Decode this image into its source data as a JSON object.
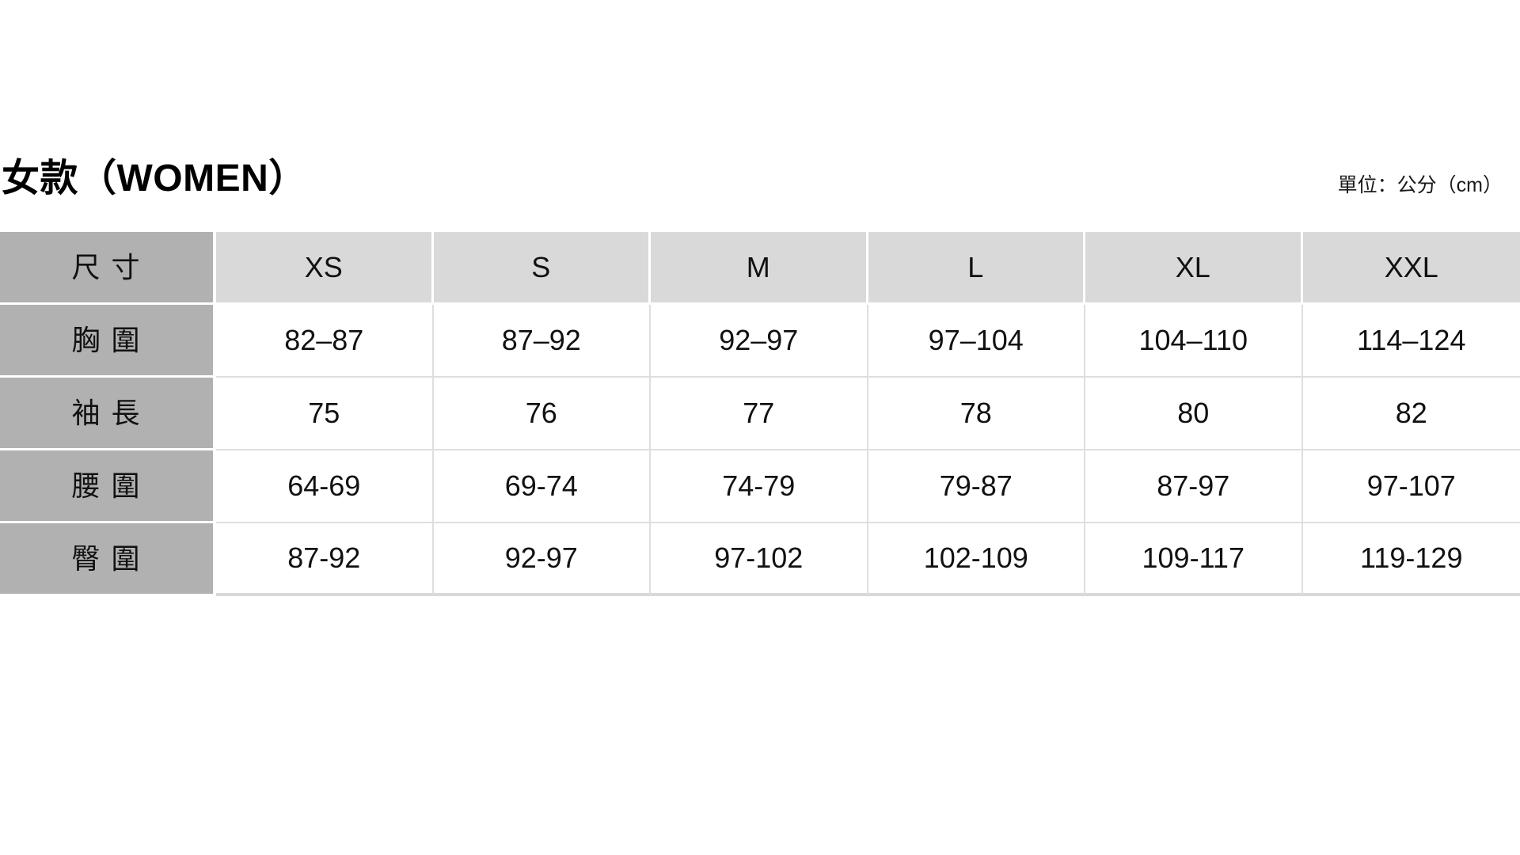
{
  "page": {
    "title": "女款（WOMEN）",
    "unit_note": "單位：公分（cm）"
  },
  "table": {
    "header": {
      "label": "尺 寸",
      "sizes": [
        "XS",
        "S",
        "M",
        "L",
        "XL",
        "XXL"
      ]
    },
    "rows": [
      {
        "label": "胸 圍",
        "values": [
          "82–87",
          "87–92",
          "92–97",
          "97–104",
          "104–110",
          "114–124"
        ]
      },
      {
        "label": "袖 長",
        "values": [
          "75",
          "76",
          "77",
          "78",
          "80",
          "82"
        ]
      },
      {
        "label": "腰 圍",
        "values": [
          "64-69",
          "69-74",
          "74-79",
          "79-87",
          "87-97",
          "97-107"
        ]
      },
      {
        "label": "臀 圍",
        "values": [
          "87-92",
          "92-97",
          "97-102",
          "102-109",
          "109-117",
          "119-129"
        ]
      }
    ]
  },
  "colors": {
    "label_bg": "#b1b1b1",
    "header_bg": "#d9d9d9",
    "grid_line": "#dedede",
    "bottom_border": "#d9d9d9",
    "text": "#111111",
    "page_bg": "#ffffff"
  }
}
